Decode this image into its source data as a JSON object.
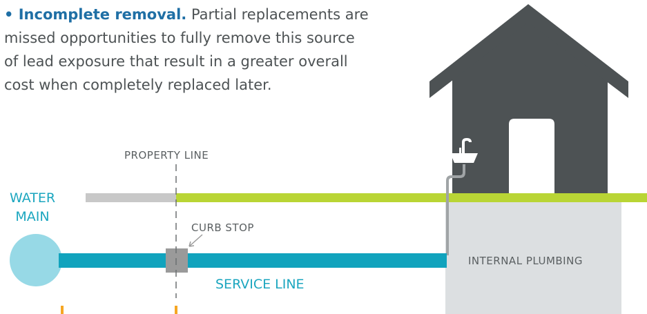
{
  "paragraph": {
    "title": "• Incomplete removal.",
    "lines": [
      "Partial replacements are",
      "missed opportunities to fully remove this source",
      "of lead exposure that result in a greater overall",
      "cost when completely replaced later."
    ]
  },
  "labels": {
    "property_line": "PROPERTY LINE",
    "water_main": [
      "WATER",
      "MAIN"
    ],
    "curb_stop": "CURB STOP",
    "service_line": "SERVICE LINE",
    "internal_plumbing": "INTERNAL PLUMBING"
  }
}
